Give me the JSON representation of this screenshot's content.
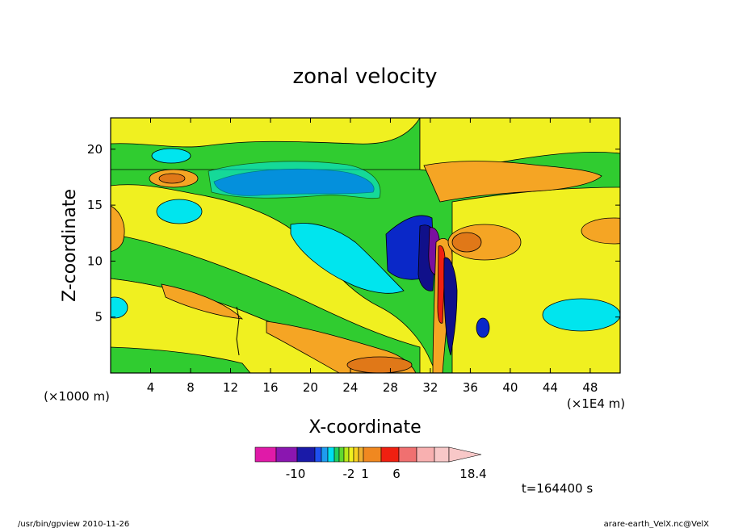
{
  "chart_data": {
    "type": "heatmap",
    "title": "zonal velocity",
    "xlabel": "X-coordinate",
    "ylabel": "Z-coordinate",
    "x_unit_left": "(×1000 m)",
    "x_unit_right": "(×1E4 m)",
    "xlim": [
      0,
      51
    ],
    "ylim": [
      0,
      22.8
    ],
    "x_ticks": [
      "4",
      "8",
      "12",
      "16",
      "20",
      "24",
      "28",
      "32",
      "36",
      "40",
      "44",
      "48"
    ],
    "y_ticks": [
      "5",
      "10",
      "15",
      "20"
    ],
    "colorbar": {
      "tick_labels": [
        "-10",
        "-2",
        "1",
        "6",
        "18.4"
      ],
      "colors": [
        "#e01aa8",
        "#8a16b0",
        "#1a1aa8",
        "#1e50f0",
        "#1e9cf0",
        "#00e0f0",
        "#20d060",
        "#60d830",
        "#b8e818",
        "#f0f020",
        "#f8d020",
        "#f0b030",
        "#f08820",
        "#f02010",
        "#f07070",
        "#f8b0b0",
        "#f8c8c8"
      ],
      "extend": "max"
    },
    "annotation": "t=164400 s"
  },
  "footer": {
    "left": "/usr/bin/gpview   2010-11-26",
    "right": "arare-earth_VelX.nc@VelX"
  },
  "colors": {
    "background": "#00b400",
    "yellow": "#f0f020",
    "orange": "#f5a524",
    "cyan": "#00e5ee",
    "blue": "#0a28c8",
    "navy": "#10108a",
    "purple": "#7a10a0",
    "red": "#f02010",
    "darkorange": "#e07818"
  }
}
